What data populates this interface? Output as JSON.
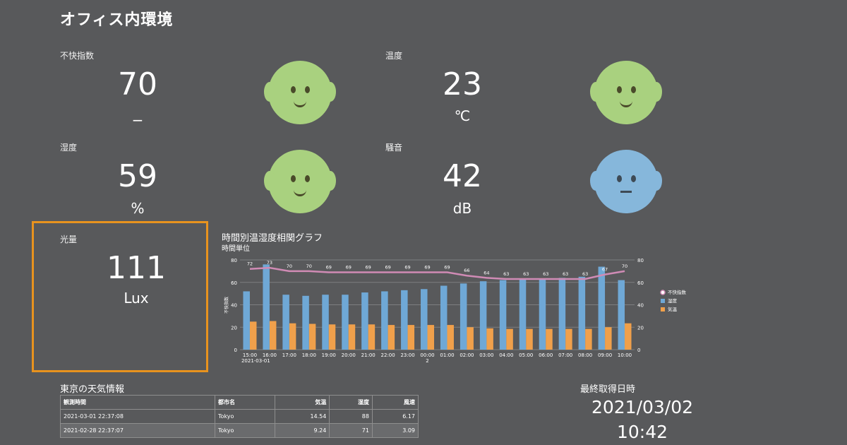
{
  "page": {
    "title": "オフィス内環境"
  },
  "metrics": {
    "discomfort": {
      "label": "不快指数",
      "value": "70",
      "unit": "−",
      "face": "smile-face-icon",
      "face_color": "#a9d17f"
    },
    "temperature": {
      "label": "温度",
      "value": "23",
      "unit": "℃",
      "face": "smile-face-icon",
      "face_color": "#a9d17f"
    },
    "humidity": {
      "label": "湿度",
      "value": "59",
      "unit": "%",
      "face": "smile-face-icon",
      "face_color": "#a9d17f"
    },
    "noise": {
      "label": "騒音",
      "value": "42",
      "unit": "dB",
      "face": "neutral-face-icon",
      "face_color": "#86b7db"
    },
    "light": {
      "label": "光量",
      "value": "111",
      "unit": "Lux",
      "highlight_color": "#e8931e"
    }
  },
  "chart": {
    "title": "時間別温湿度相関グラフ",
    "subtitle": "時間単位"
  },
  "chart_data": {
    "type": "bar",
    "categories": [
      "15:00\n2021-03-01",
      "16:00",
      "17:00",
      "18:00",
      "19:00",
      "20:00",
      "21:00",
      "22:00",
      "23:00",
      "00:00\n2",
      "01:00",
      "02:00",
      "03:00",
      "04:00",
      "05:00",
      "06:00",
      "07:00",
      "08:00",
      "09:00",
      "10:00"
    ],
    "series": [
      {
        "name": "不快指数",
        "kind": "line",
        "color": "#d08bb5",
        "values": [
          72,
          73,
          70,
          70,
          69,
          69,
          69,
          69,
          69,
          69,
          69,
          66,
          64,
          63,
          63,
          63,
          63,
          63,
          67,
          70
        ]
      },
      {
        "name": "湿度",
        "kind": "bar",
        "color": "#6fa8d6",
        "values": [
          52,
          76,
          49,
          48,
          49,
          49,
          51,
          52,
          53,
          54,
          57,
          59,
          61,
          62,
          63,
          63,
          64,
          65,
          74,
          62
        ]
      },
      {
        "name": "気温",
        "kind": "bar",
        "color": "#f0a04b",
        "values": [
          25,
          25.5,
          23.5,
          23,
          22.5,
          22.5,
          22.5,
          22,
          22,
          22,
          22,
          20,
          19,
          18.5,
          18.5,
          18.5,
          18.5,
          18.5,
          20,
          23.5
        ]
      }
    ],
    "ylabel": "不快指数",
    "ylim": [
      0,
      80
    ],
    "y2lim": [
      0,
      80
    ],
    "yticks": [
      0,
      20,
      40,
      60,
      80
    ],
    "grid": true,
    "legend": "right"
  },
  "weather": {
    "title": "東京の天気情報",
    "columns": [
      "観測時間",
      "都市名",
      "気温",
      "湿度",
      "風速"
    ],
    "rows": [
      [
        "2021-03-01 22:37:08",
        "Tokyo",
        "14.54",
        "88",
        "6.17"
      ],
      [
        "2021-02-28 22:37:07",
        "Tokyo",
        "9.24",
        "71",
        "3.09"
      ]
    ]
  },
  "last_fetch": {
    "title": "最終取得日時",
    "date": "2021/03/02",
    "time": "10:42"
  }
}
